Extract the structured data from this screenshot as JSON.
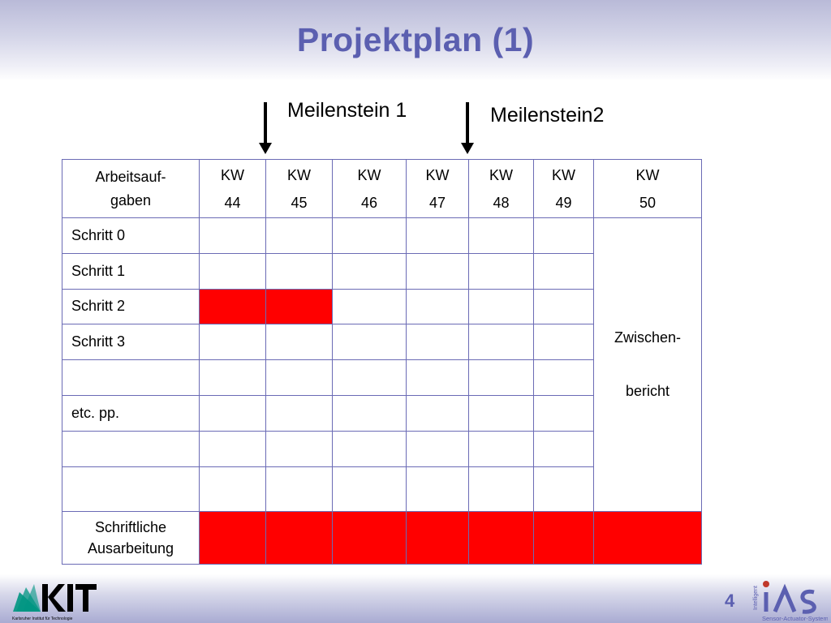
{
  "title": "Projektplan (1)",
  "milestones": [
    {
      "label": "Meilenstein 1"
    },
    {
      "label": "Meilenstein2"
    }
  ],
  "table": {
    "header": [
      "Arbeitsauf-\ngaben",
      "KW\n44",
      "KW\n45",
      "KW\n46",
      "KW\n47",
      "KW\n48",
      "KW\n49",
      "KW\n50"
    ],
    "rows": [
      {
        "task": "Schritt 0",
        "filled": [
          false,
          false,
          false,
          false,
          false,
          false
        ]
      },
      {
        "task": "Schritt 1",
        "filled": [
          false,
          false,
          false,
          false,
          false,
          false
        ]
      },
      {
        "task": "Schritt 2",
        "filled": [
          true,
          true,
          false,
          false,
          false,
          false
        ]
      },
      {
        "task": "Schritt 3",
        "filled": [
          false,
          false,
          false,
          false,
          false,
          false
        ]
      },
      {
        "task": "",
        "filled": [
          false,
          false,
          false,
          false,
          false,
          false
        ]
      },
      {
        "task": "etc. pp.",
        "filled": [
          false,
          false,
          false,
          false,
          false,
          false
        ]
      },
      {
        "task": "",
        "filled": [
          false,
          false,
          false,
          false,
          false,
          false
        ]
      },
      {
        "task": "",
        "filled": [
          false,
          false,
          false,
          false,
          false,
          false
        ]
      }
    ],
    "merged_kw50": "Zwischen-\nbericht",
    "final_row": {
      "task": "Schriftliche\nAusarbeitung",
      "filled": [
        true,
        true,
        true,
        true,
        true,
        true,
        true
      ]
    }
  },
  "colors": {
    "accent": "#5b5fb0",
    "fill": "#ff0000",
    "grid": "#6b6bb5"
  },
  "footer": {
    "page_number": "4",
    "kit_logo_text": "KIT",
    "kit_subtitle": "Karlsruher Institut für Technologie",
    "ias_logo_text": "IAS",
    "ias_vertical": "Intelligent",
    "ias_subtitle": "Sensor-Actuator-Systems"
  }
}
